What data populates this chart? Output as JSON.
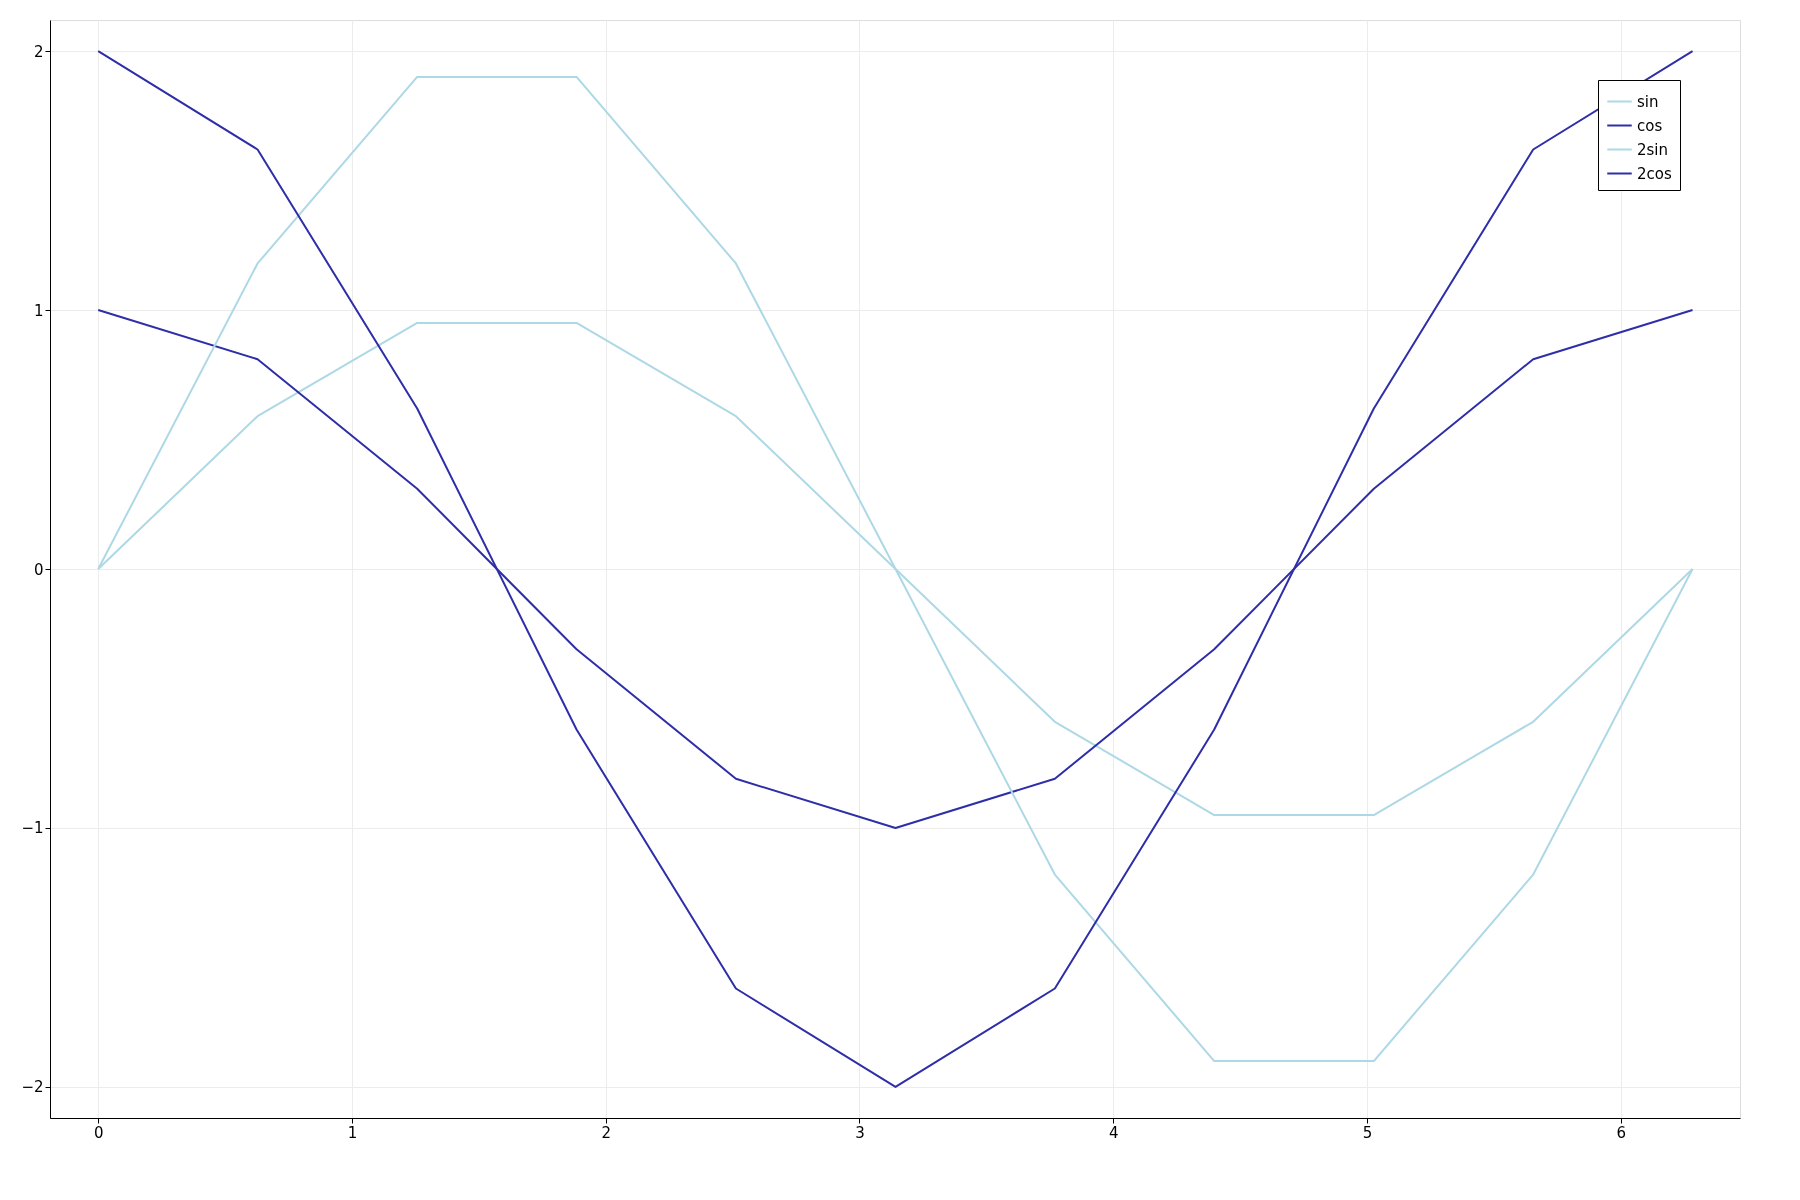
{
  "chart_data": {
    "type": "line",
    "x": [
      0,
      0.628,
      1.257,
      1.885,
      2.513,
      3.142,
      3.77,
      4.398,
      5.027,
      5.655,
      6.283
    ],
    "series": [
      {
        "name": "sin",
        "color": "#add8e6",
        "values": [
          0,
          0.59,
          0.95,
          0.95,
          0.59,
          0,
          -0.59,
          -0.95,
          -0.95,
          -0.59,
          0
        ]
      },
      {
        "name": "cos",
        "color": "#2e2ea8",
        "values": [
          1,
          0.81,
          0.31,
          -0.31,
          -0.81,
          -1,
          -0.81,
          -0.31,
          0.31,
          0.81,
          1
        ]
      },
      {
        "name": "2sin",
        "color": "#add8e6",
        "values": [
          0,
          1.18,
          1.9,
          1.9,
          1.18,
          0,
          -1.18,
          -1.9,
          -1.9,
          -1.18,
          0
        ]
      },
      {
        "name": "2cos",
        "color": "#2e2ea8",
        "values": [
          2,
          1.62,
          0.62,
          -0.62,
          -1.62,
          -2,
          -1.62,
          -0.62,
          0.62,
          1.62,
          2
        ]
      }
    ],
    "xlim": [
      -0.19,
      6.47
    ],
    "xticks": [
      0,
      1,
      2,
      3,
      4,
      5,
      6
    ],
    "ylim": [
      -2.12,
      2.12
    ],
    "yticks": [
      -2,
      -1,
      0,
      1,
      2
    ],
    "grid": true,
    "legend": "top right",
    "marker": "none",
    "line_style": "solid"
  }
}
